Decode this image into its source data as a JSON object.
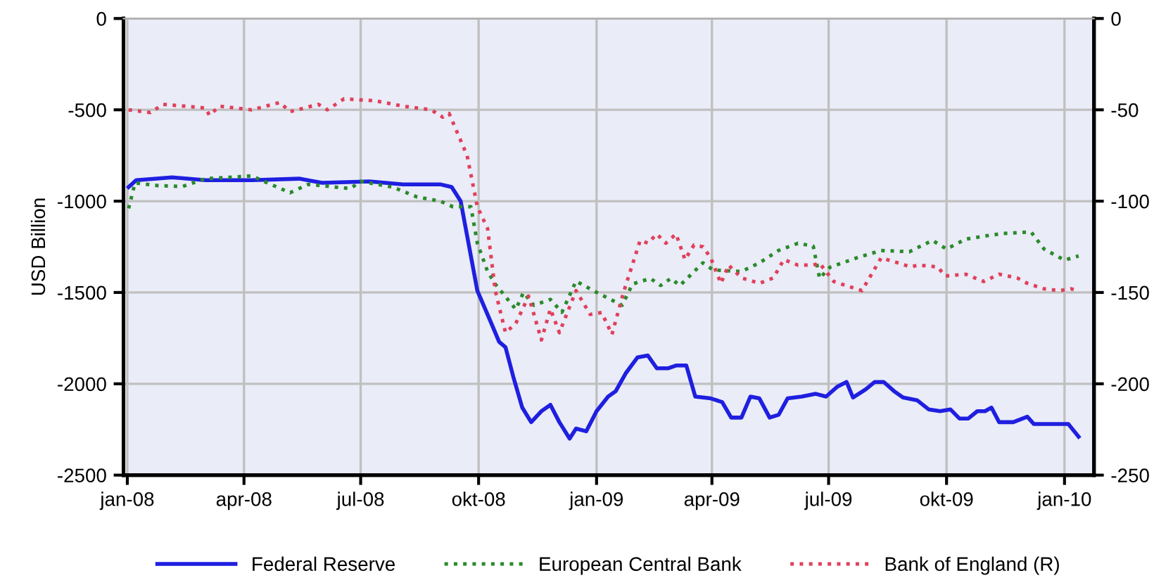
{
  "chart_data": {
    "type": "line",
    "ylabel": "USD Billion",
    "xlim": [
      "2007-12-29",
      "2010-01-24"
    ],
    "xticks": [
      {
        "value": "2008-01-01",
        "label": "jan-08"
      },
      {
        "value": "2008-04-01",
        "label": "apr-08"
      },
      {
        "value": "2008-07-01",
        "label": "jul-08"
      },
      {
        "value": "2008-10-01",
        "label": "okt-08"
      },
      {
        "value": "2009-01-01",
        "label": "jan-09"
      },
      {
        "value": "2009-04-01",
        "label": "apr-09"
      },
      {
        "value": "2009-07-01",
        "label": "jul-09"
      },
      {
        "value": "2009-10-01",
        "label": "okt-09"
      },
      {
        "value": "2010-01-01",
        "label": "jan-10"
      }
    ],
    "ylim": [
      -2500,
      0
    ],
    "yticks": [
      -2500,
      -2000,
      -1500,
      -1000,
      -500,
      0
    ],
    "y2lim": [
      -250,
      0
    ],
    "y2ticks": [
      -250,
      -200,
      -150,
      -100,
      -50,
      0
    ],
    "grid": true,
    "legend": "bottom",
    "marker": "none",
    "series": [
      {
        "name": "Federal Reserve",
        "color": "#1f1fe0",
        "line_style": "solid",
        "x": [
          "2008-01-02",
          "2008-01-08",
          "2008-02-05",
          "2008-03-02",
          "2008-04-07",
          "2008-05-14",
          "2008-06-01",
          "2008-07-08",
          "2008-08-03",
          "2008-09-01",
          "2008-09-10",
          "2008-09-17",
          "2008-09-30",
          "2008-10-11",
          "2008-10-17",
          "2008-10-22",
          "2008-10-28",
          "2008-11-04",
          "2008-11-11",
          "2008-11-19",
          "2008-11-26",
          "2008-12-03",
          "2008-12-11",
          "2008-12-16",
          "2008-12-24",
          "2009-01-01",
          "2009-01-10",
          "2009-01-16",
          "2009-01-24",
          "2009-02-02",
          "2009-02-10",
          "2009-02-17",
          "2009-02-26",
          "2009-03-04",
          "2009-03-12",
          "2009-03-19",
          "2009-03-31",
          "2009-04-09",
          "2009-04-16",
          "2009-04-24",
          "2009-05-01",
          "2009-05-08",
          "2009-05-16",
          "2009-05-23",
          "2009-05-30",
          "2009-06-10",
          "2009-06-21",
          "2009-06-29",
          "2009-07-08",
          "2009-07-15",
          "2009-07-20",
          "2009-07-30",
          "2009-08-06",
          "2009-08-13",
          "2009-08-21",
          "2009-08-28",
          "2009-09-08",
          "2009-09-17",
          "2009-09-26",
          "2009-10-04",
          "2009-10-11",
          "2009-10-18",
          "2009-10-25",
          "2009-10-31",
          "2009-11-05",
          "2009-11-11",
          "2009-11-22",
          "2009-12-03",
          "2009-12-08",
          "2009-12-25",
          "2010-01-04",
          "2010-01-12"
        ],
        "values": [
          -923,
          -885,
          -870,
          -885,
          -885,
          -877,
          -900,
          -892,
          -908,
          -908,
          -923,
          -1000,
          -1490,
          -1670,
          -1770,
          -1800,
          -1960,
          -2130,
          -2210,
          -2150,
          -2115,
          -2210,
          -2300,
          -2245,
          -2260,
          -2150,
          -2070,
          -2040,
          -1940,
          -1855,
          -1845,
          -1915,
          -1915,
          -1900,
          -1900,
          -2070,
          -2080,
          -2100,
          -2185,
          -2185,
          -2070,
          -2080,
          -2185,
          -2170,
          -2080,
          -2070,
          -2055,
          -2070,
          -2015,
          -1990,
          -2075,
          -2030,
          -1990,
          -1990,
          -2040,
          -2075,
          -2090,
          -2140,
          -2150,
          -2140,
          -2190,
          -2190,
          -2150,
          -2150,
          -2130,
          -2210,
          -2210,
          -2180,
          -2220,
          -2220,
          -2220,
          -2290
        ]
      },
      {
        "name": "European Central Bank",
        "color": "#2a8a2a",
        "line_style": "dotted",
        "x": [
          "2008-01-02",
          "2008-01-07",
          "2008-01-25",
          "2008-02-13",
          "2008-03-02",
          "2008-04-07",
          "2008-05-07",
          "2008-05-21",
          "2008-06-23",
          "2008-07-01",
          "2008-07-26",
          "2008-08-14",
          "2008-09-01",
          "2008-09-11",
          "2008-09-25",
          "2008-09-30",
          "2008-10-08",
          "2008-10-14",
          "2008-10-30",
          "2008-11-05",
          "2008-11-13",
          "2008-11-26",
          "2008-12-05",
          "2008-12-16",
          "2008-12-30",
          "2009-01-21",
          "2009-01-29",
          "2009-02-12",
          "2009-02-20",
          "2009-02-28",
          "2009-03-07",
          "2009-03-25",
          "2009-04-02",
          "2009-04-24",
          "2009-05-08",
          "2009-05-23",
          "2009-06-07",
          "2009-06-19",
          "2009-06-24",
          "2009-07-02",
          "2009-07-24",
          "2009-08-11",
          "2009-09-02",
          "2009-09-20",
          "2009-10-01",
          "2009-10-16",
          "2009-10-30",
          "2009-11-14",
          "2009-12-06",
          "2009-12-16",
          "2010-01-01",
          "2010-01-12"
        ],
        "values": [
          -1040,
          -900,
          -915,
          -920,
          -877,
          -862,
          -954,
          -908,
          -931,
          -892,
          -923,
          -977,
          -1000,
          -1031,
          -1031,
          -1230,
          -1385,
          -1454,
          -1592,
          -1500,
          -1570,
          -1538,
          -1608,
          -1438,
          -1492,
          -1570,
          -1454,
          -1423,
          -1462,
          -1423,
          -1462,
          -1338,
          -1377,
          -1385,
          -1338,
          -1270,
          -1231,
          -1246,
          -1423,
          -1362,
          -1308,
          -1270,
          -1277,
          -1215,
          -1262,
          -1208,
          -1192,
          -1177,
          -1169,
          -1262,
          -1323,
          -1300
        ]
      },
      {
        "name": "Bank of England (R)",
        "color": "#e0405a",
        "line_style": "dotted",
        "axis": "y2",
        "x": [
          "2008-01-02",
          "2008-01-19",
          "2008-01-29",
          "2008-03-02",
          "2008-03-05",
          "2008-03-13",
          "2008-04-07",
          "2008-04-29",
          "2008-05-07",
          "2008-05-29",
          "2008-06-05",
          "2008-06-18",
          "2008-07-12",
          "2008-08-03",
          "2008-08-25",
          "2008-09-03",
          "2008-09-08",
          "2008-09-22",
          "2008-09-30",
          "2008-10-08",
          "2008-10-14",
          "2008-10-22",
          "2008-10-30",
          "2008-11-09",
          "2008-11-19",
          "2008-11-26",
          "2008-12-03",
          "2008-12-16",
          "2008-12-27",
          "2009-01-05",
          "2009-01-13",
          "2009-01-22",
          "2009-02-04",
          "2009-02-10",
          "2009-02-17",
          "2009-02-24",
          "2009-03-04",
          "2009-03-11",
          "2009-03-18",
          "2009-03-25",
          "2009-03-31",
          "2009-04-08",
          "2009-04-14",
          "2009-04-24",
          "2009-05-08",
          "2009-05-19",
          "2009-05-27",
          "2009-06-07",
          "2009-06-19",
          "2009-06-24",
          "2009-07-05",
          "2009-07-27",
          "2009-08-11",
          "2009-09-03",
          "2009-09-09",
          "2009-09-24",
          "2009-09-30",
          "2009-10-16",
          "2009-10-30",
          "2009-11-11",
          "2009-11-25",
          "2009-12-03",
          "2009-12-16",
          "2009-12-28",
          "2010-01-06",
          "2010-01-12"
        ],
        "values": [
          -50,
          -51.5,
          -47,
          -49,
          -53,
          -48,
          -50,
          -46,
          -51,
          -47,
          -50,
          -44,
          -45,
          -48,
          -50,
          -54,
          -52,
          -75,
          -103,
          -115,
          -149,
          -172,
          -167,
          -152,
          -176,
          -159,
          -172,
          -149,
          -162,
          -161,
          -173,
          -150,
          -121.5,
          -123,
          -118,
          -123,
          -118,
          -132,
          -124,
          -125,
          -131,
          -145,
          -135,
          -142,
          -145,
          -142,
          -132,
          -135,
          -135,
          -134,
          -144,
          -149,
          -131,
          -136,
          -135,
          -136,
          -141,
          -140,
          -144,
          -140,
          -142,
          -145,
          -148,
          -149,
          -148,
          -149
        ]
      }
    ]
  }
}
